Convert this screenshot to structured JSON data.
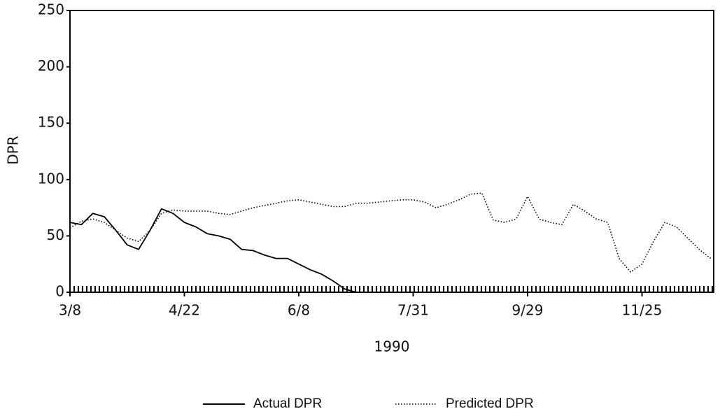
{
  "chart_data": {
    "type": "line",
    "x_label": "1990",
    "y_label": "DPR",
    "categories": [
      "3/8",
      null,
      null,
      null,
      null,
      null,
      null,
      null,
      null,
      null,
      "4/22",
      null,
      null,
      null,
      null,
      null,
      null,
      null,
      null,
      null,
      "6/8",
      null,
      null,
      null,
      null,
      null,
      null,
      null,
      null,
      null,
      "7/31",
      null,
      null,
      null,
      null,
      null,
      null,
      null,
      null,
      null,
      "9/29",
      null,
      null,
      null,
      null,
      null,
      null,
      null,
      null,
      null,
      "11/25",
      null,
      null,
      null,
      null,
      null,
      null
    ],
    "series": [
      {
        "name": "Actual DPR",
        "color": "#000000",
        "line_style": "solid",
        "values": [
          62,
          60,
          70,
          67,
          55,
          42,
          38,
          55,
          74,
          70,
          62,
          58,
          52,
          50,
          47,
          38,
          37,
          33,
          30,
          30,
          25,
          20,
          16,
          10,
          3,
          0,
          null,
          null,
          null,
          null,
          null,
          null,
          null,
          null,
          null,
          null,
          null,
          null,
          null,
          null,
          null,
          null,
          null,
          null,
          null,
          null,
          null,
          null,
          null,
          null,
          null,
          null,
          null,
          null,
          null,
          null,
          null
        ]
      },
      {
        "name": "Predicted DPR",
        "color": "#000000",
        "line_style": "dotted",
        "values": [
          57,
          63,
          65,
          62,
          55,
          48,
          45,
          55,
          70,
          73,
          72,
          72,
          72,
          70,
          69,
          72,
          75,
          77,
          79,
          81,
          82,
          80,
          78,
          76,
          76,
          79,
          79,
          80,
          81,
          82,
          82,
          80,
          75,
          78,
          82,
          87,
          88,
          64,
          62,
          65,
          85,
          65,
          62,
          60,
          78,
          72,
          65,
          62,
          30,
          18,
          25,
          45,
          62,
          58,
          48,
          38,
          30
        ]
      }
    ],
    "ylim": [
      0,
      250
    ],
    "yticks": [
      0,
      50,
      100,
      150,
      200,
      250
    ],
    "grid": false
  }
}
